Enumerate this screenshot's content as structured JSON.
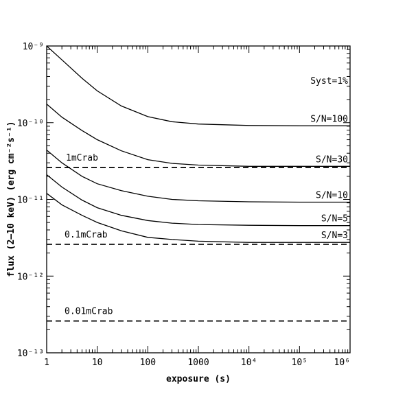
{
  "chart_data": {
    "type": "line",
    "title": "",
    "xlabel": "exposure (s)",
    "ylabel": "flux (2–10 keV) (erg cm⁻²s⁻¹)",
    "x_scale": "log",
    "y_scale": "log",
    "xlim": [
      1,
      1000000
    ],
    "ylim": [
      1e-13,
      1e-09
    ],
    "grid": false,
    "x_ticks": [
      {
        "value": 1,
        "label": "1"
      },
      {
        "value": 10,
        "label": "10"
      },
      {
        "value": 100,
        "label": "100"
      },
      {
        "value": 1000,
        "label": "1000"
      },
      {
        "value": 10000,
        "label": "10⁴"
      },
      {
        "value": 100000,
        "label": "10⁵"
      },
      {
        "value": 1000000,
        "label": "10⁶"
      }
    ],
    "y_ticks": [
      {
        "value": 1e-09,
        "label": "10⁻⁹"
      },
      {
        "value": 1e-10,
        "label": "10⁻¹⁰"
      },
      {
        "value": 1e-11,
        "label": "10⁻¹¹"
      },
      {
        "value": 1e-12,
        "label": "10⁻¹²"
      },
      {
        "value": 1e-13,
        "label": "10⁻¹³"
      }
    ],
    "series": [
      {
        "name": "S/N=100",
        "x": [
          1,
          2,
          5,
          10,
          30,
          100,
          300,
          1000,
          10000,
          100000,
          1000000
        ],
        "y": [
          1e-09,
          6.6e-10,
          3.8e-10,
          2.6e-10,
          1.65e-10,
          1.2e-10,
          1.03e-10,
          9.6e-11,
          9.2e-11,
          9.1e-11,
          9.1e-11
        ]
      },
      {
        "name": "S/N=30",
        "x": [
          1,
          2,
          5,
          10,
          30,
          100,
          300,
          1000,
          10000,
          100000,
          1000000
        ],
        "y": [
          1.75e-10,
          1.18e-10,
          7.9e-11,
          6e-11,
          4.3e-11,
          3.3e-11,
          2.95e-11,
          2.8e-11,
          2.7e-11,
          2.7e-11,
          2.7e-11
        ]
      },
      {
        "name": "S/N=10",
        "x": [
          1,
          2,
          5,
          10,
          30,
          100,
          300,
          1000,
          10000,
          100000,
          1000000
        ],
        "y": [
          4.4e-11,
          3e-11,
          2e-11,
          1.6e-11,
          1.3e-11,
          1.1e-11,
          1e-11,
          9.6e-12,
          9.3e-12,
          9.2e-12,
          9.2e-12
        ]
      },
      {
        "name": "S/N=5",
        "x": [
          1,
          2,
          5,
          10,
          30,
          100,
          300,
          1000,
          10000,
          100000,
          1000000
        ],
        "y": [
          2.1e-11,
          1.45e-11,
          9.8e-12,
          7.8e-12,
          6.2e-12,
          5.3e-12,
          4.9e-12,
          4.7e-12,
          4.6e-12,
          4.55e-12,
          4.55e-12
        ]
      },
      {
        "name": "S/N=3",
        "x": [
          1,
          2,
          5,
          10,
          30,
          100,
          300,
          1000,
          10000,
          100000,
          1000000
        ],
        "y": [
          1.2e-11,
          8.5e-12,
          6.2e-12,
          5e-12,
          3.9e-12,
          3.2e-12,
          3e-12,
          2.85e-12,
          2.75e-12,
          2.75e-12,
          2.75e-12
        ]
      }
    ],
    "reference_lines": [
      {
        "label": "1mCrab",
        "y": 2.6e-11,
        "style": "dashed"
      },
      {
        "label": "0.1mCrab",
        "y": 2.6e-12,
        "style": "dashed"
      },
      {
        "label": "0.01mCrab",
        "y": 2.6e-13,
        "style": "dashed"
      }
    ],
    "annotations": [
      {
        "text": "Syst=1%"
      }
    ]
  }
}
